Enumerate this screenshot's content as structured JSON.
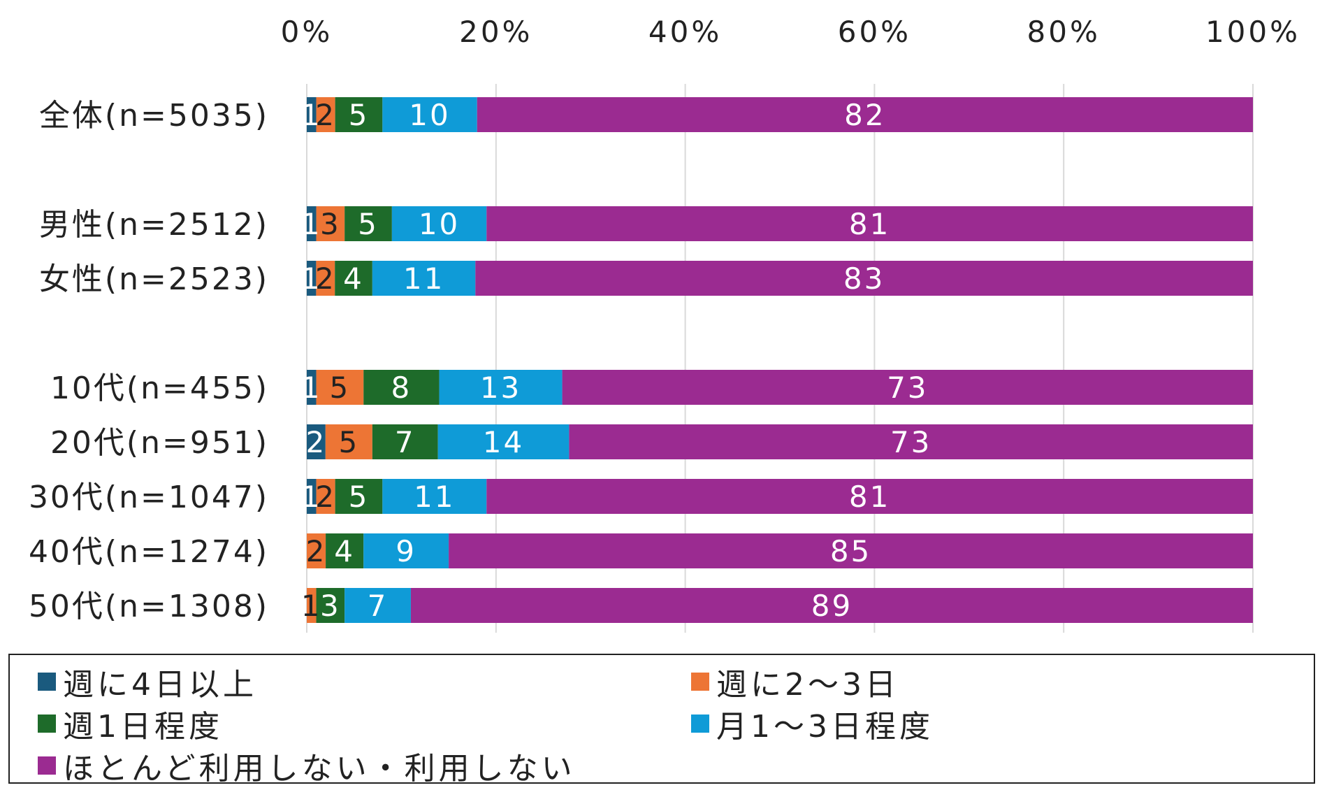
{
  "chart_data": {
    "type": "bar",
    "orientation": "horizontal",
    "stacked": "percent",
    "title": "",
    "xlabel": "",
    "ylabel": "",
    "xlim": [
      0,
      100
    ],
    "x_ticks": [
      "0%",
      "20%",
      "40%",
      "60%",
      "80%",
      "100%"
    ],
    "grid": true,
    "legend_position": "bottom",
    "categories": [
      "全体(n=5035)",
      "男性(n=2512)",
      "女性(n=2523)",
      "10代(n=455)",
      "20代(n=951)",
      "30代(n=1047)",
      "40代(n=1274)",
      "50代(n=1308)"
    ],
    "series": [
      {
        "name": "週に4日以上",
        "color": "#1a5a7e",
        "values": [
          1,
          1,
          1,
          1,
          2,
          1,
          0,
          0
        ]
      },
      {
        "name": "週に2～3日",
        "color": "#ed7535",
        "values": [
          2,
          3,
          2,
          5,
          5,
          2,
          2,
          1
        ]
      },
      {
        "name": "週1日程度",
        "color": "#1e6b2a",
        "values": [
          5,
          5,
          4,
          8,
          7,
          5,
          4,
          3
        ]
      },
      {
        "name": "月1～3日程度",
        "color": "#0f9bd7",
        "values": [
          10,
          10,
          11,
          13,
          14,
          11,
          9,
          7
        ]
      },
      {
        "name": "ほとんど利用しない・利用しない",
        "color": "#9b2b91",
        "values": [
          82,
          81,
          83,
          73,
          73,
          81,
          85,
          89
        ]
      }
    ]
  }
}
